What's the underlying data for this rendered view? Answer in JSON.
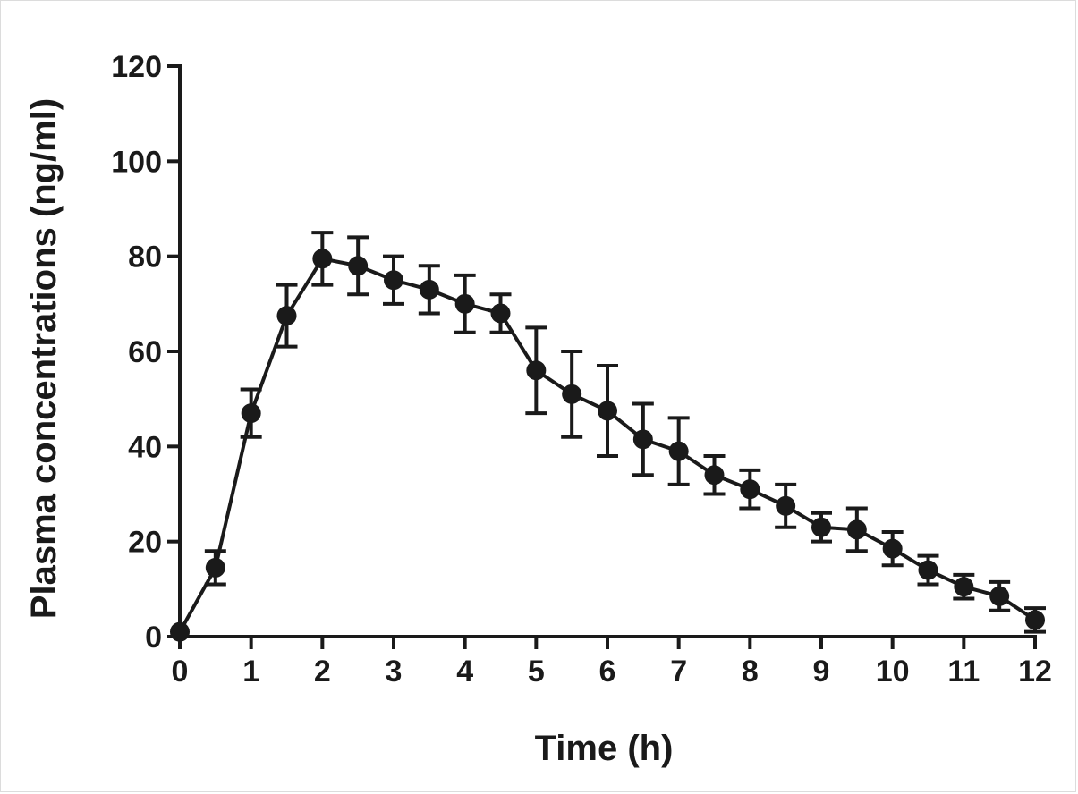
{
  "chart_data": {
    "type": "line",
    "title": "",
    "xlabel": "Time (h)",
    "ylabel": "Plasma concentrations (ng/ml)",
    "xlim": [
      0,
      12
    ],
    "ylim": [
      0,
      120
    ],
    "x_ticks": [
      0,
      1,
      2,
      3,
      4,
      5,
      6,
      7,
      8,
      9,
      10,
      11,
      12
    ],
    "y_ticks": [
      0,
      20,
      40,
      60,
      80,
      100,
      120
    ],
    "x_tick_labels": [
      "0",
      "1",
      "2",
      "3",
      "4",
      "5",
      "6",
      "7",
      "8",
      "9",
      "10",
      "11",
      "12"
    ],
    "y_tick_labels": [
      "0",
      "20",
      "40",
      "60",
      "80",
      "100",
      "120"
    ],
    "grid": false,
    "legend": "none",
    "series": [
      {
        "x": [
          0,
          0.5,
          1,
          1.5,
          2,
          2.5,
          3,
          3.5,
          4,
          4.5,
          5,
          5.5,
          6,
          6.5,
          7,
          7.5,
          8,
          8.5,
          9,
          9.5,
          10,
          10.5,
          11,
          11.5,
          12
        ],
        "values": [
          1,
          14.5,
          47,
          67.5,
          79.5,
          78,
          75,
          73,
          70,
          68,
          56,
          51,
          47.5,
          41.5,
          39,
          34,
          31,
          27.5,
          23,
          22.5,
          18.5,
          14,
          10.5,
          8.5,
          3.5
        ],
        "error": [
          0,
          3.5,
          5,
          6.5,
          5.5,
          6,
          5,
          5,
          6,
          4,
          9,
          9,
          9.5,
          7.5,
          7,
          4,
          4,
          4.5,
          3,
          4.5,
          3.5,
          3,
          2.5,
          3,
          2.5
        ]
      }
    ]
  }
}
